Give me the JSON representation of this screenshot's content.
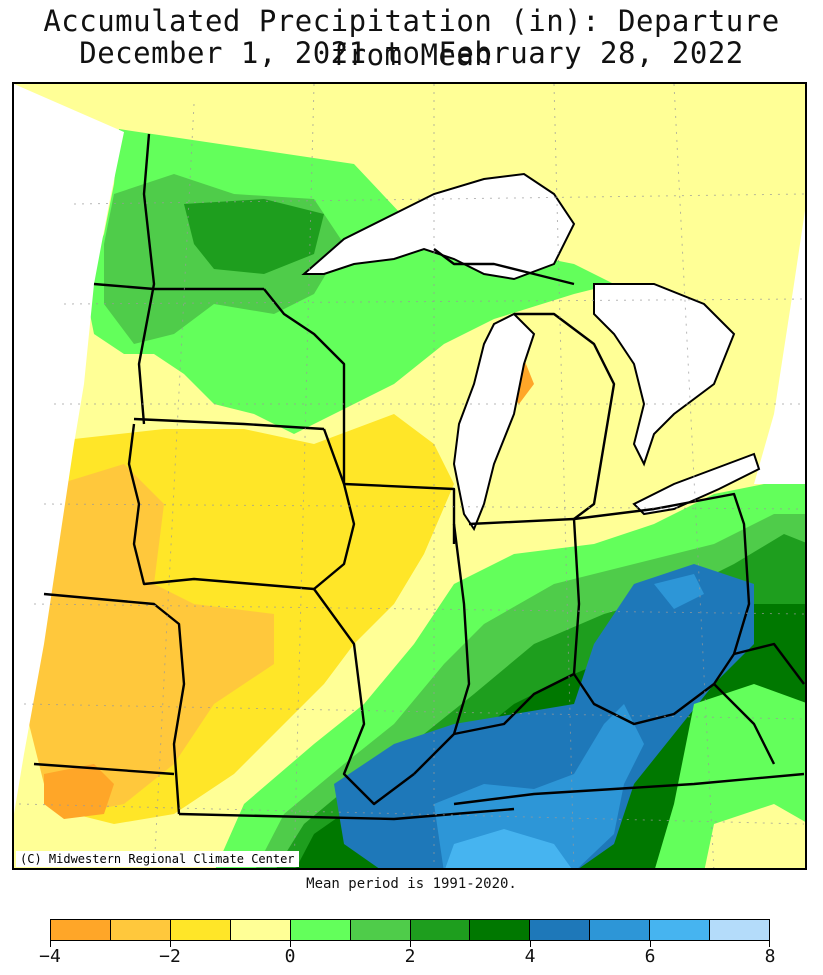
{
  "title": {
    "line1": "Accumulated Precipitation (in): Departure from Mean",
    "line2": "December 1, 2021 to February 28, 2022"
  },
  "map": {
    "credit": "(C) Midwestern Regional Climate Center",
    "lake_color": "#ffffff",
    "border_color": "#000000"
  },
  "footer": {
    "mean_period": "Mean period is 1991-2020."
  },
  "legend": {
    "bins": [
      {
        "from": -4,
        "to": -3,
        "color": "#ffa628"
      },
      {
        "from": -3,
        "to": -2,
        "color": "#ffc83c"
      },
      {
        "from": -2,
        "to": -1,
        "color": "#ffe628"
      },
      {
        "from": -1,
        "to": 0,
        "color": "#ffff96"
      },
      {
        "from": 0,
        "to": 1,
        "color": "#63ff5b"
      },
      {
        "from": 1,
        "to": 2,
        "color": "#4fcc4a"
      },
      {
        "from": 2,
        "to": 3,
        "color": "#1e9e1e"
      },
      {
        "from": 3,
        "to": 4,
        "color": "#007800"
      },
      {
        "from": 4,
        "to": 5,
        "color": "#1e78b9"
      },
      {
        "from": 5,
        "to": 6,
        "color": "#2d96d7"
      },
      {
        "from": 6,
        "to": 7,
        "color": "#46b4f0"
      },
      {
        "from": 7,
        "to": 8,
        "color": "#b4dcfa"
      }
    ],
    "tick_labels": [
      "−4",
      "−2",
      "0",
      "2",
      "4",
      "6",
      "8"
    ]
  }
}
